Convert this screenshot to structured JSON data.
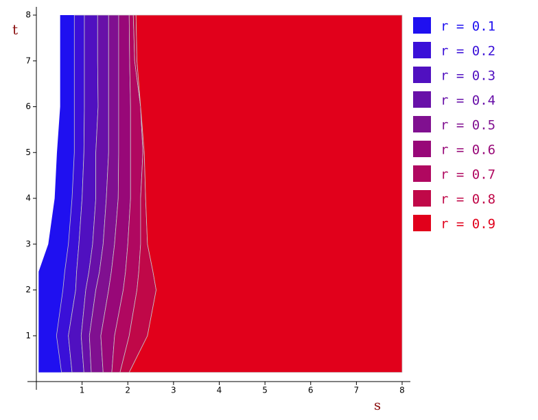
{
  "chart_data": {
    "type": "contour",
    "x_label": "s",
    "y_label": "t",
    "xlim": [
      0,
      8
    ],
    "ylim": [
      0,
      8
    ],
    "xticks": [
      1,
      2,
      3,
      4,
      5,
      6,
      7,
      8
    ],
    "yticks": [
      1,
      2,
      3,
      4,
      5,
      6,
      7,
      8
    ],
    "t": [
      0.2,
      1,
      2,
      2.4,
      3,
      4,
      5,
      6,
      7,
      8
    ],
    "series": [
      {
        "name": "r = 0.1",
        "color": "#1f10f0",
        "values": [
          0.05,
          0.05,
          0.05,
          0.05,
          0.26,
          0.4,
          0.45,
          0.52,
          0.52,
          0.52
        ]
      },
      {
        "name": "r = 0.2",
        "color": "#3a10d8",
        "values": [
          0.55,
          0.44,
          0.58,
          0.62,
          0.7,
          0.78,
          0.83,
          0.83,
          0.83,
          0.83
        ]
      },
      {
        "name": "r = 0.3",
        "color": "#5010c0",
        "values": [
          0.78,
          0.7,
          0.86,
          0.88,
          0.93,
          1.0,
          1.04,
          1.05,
          1.05,
          1.05
        ]
      },
      {
        "name": "r = 0.4",
        "color": "#6810a8",
        "values": [
          1.04,
          0.98,
          1.08,
          1.15,
          1.23,
          1.3,
          1.3,
          1.35,
          1.34,
          1.34
        ]
      },
      {
        "name": "r = 0.5",
        "color": "#801090",
        "values": [
          1.2,
          1.16,
          1.3,
          1.38,
          1.46,
          1.53,
          1.58,
          1.58,
          1.58,
          1.58
        ]
      },
      {
        "name": "r = 0.6",
        "color": "#980878",
        "values": [
          1.46,
          1.41,
          1.58,
          1.64,
          1.71,
          1.79,
          1.8,
          1.8,
          1.8,
          1.8
        ]
      },
      {
        "name": "r = 0.7",
        "color": "#b00860",
        "values": [
          1.65,
          1.71,
          1.9,
          1.95,
          2.0,
          2.06,
          2.06,
          2.06,
          2.04,
          2.03
        ]
      },
      {
        "name": "r = 0.8",
        "color": "#c00848",
        "values": [
          1.83,
          2.03,
          2.2,
          2.24,
          2.28,
          2.28,
          2.33,
          2.28,
          2.15,
          2.12
        ]
      },
      {
        "name": "r = 0.9",
        "color": "#e1001b",
        "values": [
          2.03,
          2.43,
          2.62,
          2.55,
          2.43,
          2.39,
          2.36,
          2.28,
          2.2,
          2.18
        ]
      }
    ]
  }
}
